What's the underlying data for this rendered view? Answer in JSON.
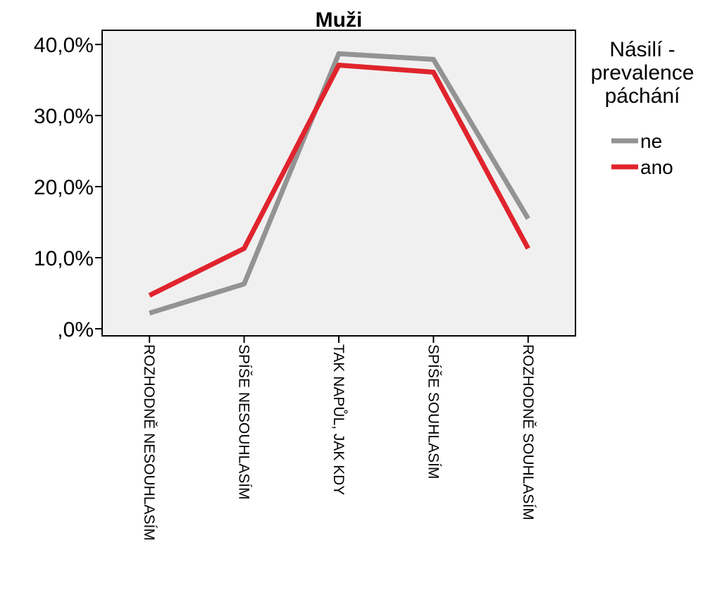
{
  "chart_data": {
    "type": "line",
    "title": "Muži",
    "xlabel": "",
    "ylabel": "",
    "categories": [
      "ROZHODNĚ NESOUHLASÍM",
      "SPÍŠE NESOUHLASÍM",
      "TAK NAPŮL, JAK KDY",
      "SPÍŠE SOUHLASÍM",
      "ROZHODNĚ SOUHLASÍM"
    ],
    "y_ticks": [
      "40,0%",
      "30,0%",
      "20,0%",
      "10,0%",
      ",0%"
    ],
    "y_tick_values": [
      40,
      30,
      20,
      10,
      0
    ],
    "ylim": [
      -1,
      42
    ],
    "grid": false,
    "legend": {
      "title": "Násilí - prevalence páchání",
      "title_lines": [
        "Násilí -",
        "prevalence",
        "páchání"
      ],
      "placement": "right"
    },
    "series": [
      {
        "name": "ne",
        "color": "#939393",
        "values": [
          2.2,
          6.3,
          38.7,
          37.9,
          15.5
        ]
      },
      {
        "name": "ano",
        "color": "#e0242c",
        "values": [
          4.7,
          11.3,
          37.1,
          36.1,
          11.3
        ]
      }
    ]
  },
  "colors": {
    "plot_background": "#f0f0f0",
    "frame": "#000000"
  }
}
